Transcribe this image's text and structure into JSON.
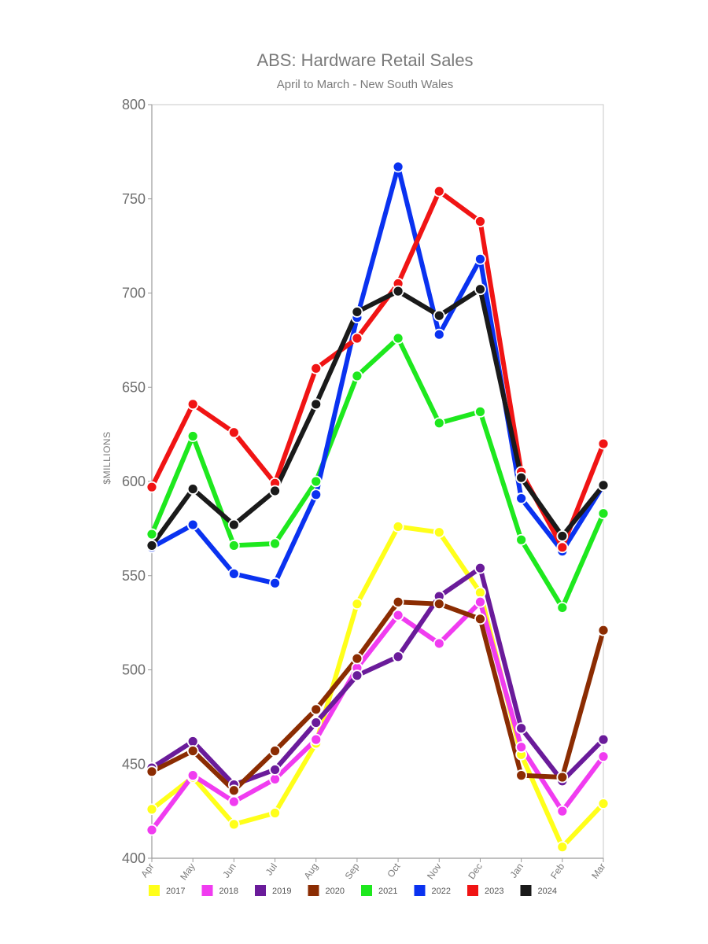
{
  "chart_data": {
    "type": "line",
    "title": "ABS: Hardware Retail Sales",
    "subtitle": "April to March - New South Wales",
    "ylabel": "$MILLIONS",
    "xlabel": "",
    "categories": [
      "Apr",
      "May",
      "Jun",
      "Jul",
      "Aug",
      "Sep",
      "Oct",
      "Nov",
      "Dec",
      "Jan",
      "Feb",
      "Mar"
    ],
    "ylim": [
      400,
      800
    ],
    "yticks": [
      "400",
      "450",
      "500",
      "550",
      "600",
      "650",
      "700",
      "750",
      "800"
    ],
    "grid": false,
    "legend_position": "bottom",
    "series": [
      {
        "name": "2017",
        "color": "#ffff1a",
        "values": [
          426,
          443,
          418,
          424,
          461,
          535,
          576,
          573,
          541,
          455,
          406,
          429
        ]
      },
      {
        "name": "2018",
        "color": "#f03cf0",
        "values": [
          415,
          444,
          430,
          442,
          463,
          501,
          529,
          514,
          536,
          459,
          425,
          454
        ]
      },
      {
        "name": "2019",
        "color": "#6a1b9a",
        "values": [
          448,
          462,
          439,
          447,
          472,
          497,
          507,
          539,
          554,
          469,
          441,
          463
        ]
      },
      {
        "name": "2020",
        "color": "#8b2c02",
        "values": [
          446,
          457,
          436,
          457,
          479,
          506,
          536,
          535,
          527,
          444,
          443,
          521
        ]
      },
      {
        "name": "2021",
        "color": "#1ee81e",
        "values": [
          572,
          624,
          566,
          567,
          600,
          656,
          676,
          631,
          637,
          569,
          533,
          583
        ]
      },
      {
        "name": "2022",
        "color": "#0a32f0",
        "values": [
          565,
          577,
          551,
          546,
          593,
          687,
          767,
          678,
          718,
          591,
          563,
          598
        ]
      },
      {
        "name": "2023",
        "color": "#f01414",
        "values": [
          597,
          641,
          626,
          599,
          660,
          676,
          705,
          754,
          738,
          605,
          565,
          620
        ]
      },
      {
        "name": "2024",
        "color": "#1a1a1a",
        "values": [
          566,
          596,
          577,
          595,
          641,
          690,
          701,
          688,
          702,
          602,
          571,
          598
        ]
      }
    ]
  }
}
